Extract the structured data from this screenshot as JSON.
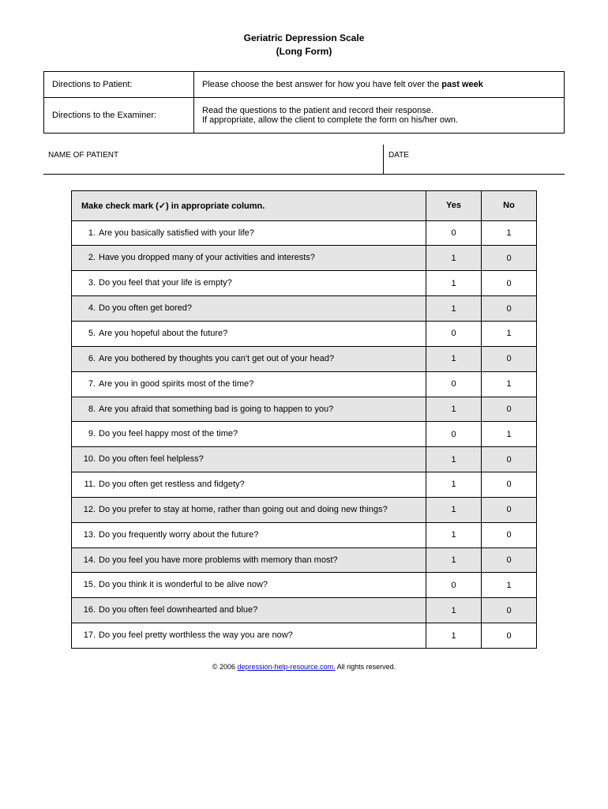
{
  "title": {
    "line1": "Geriatric Depression Scale",
    "line2": "(Long Form)"
  },
  "directions": {
    "patient_label": "Directions to Patient:",
    "patient_text_pre": "Please choose the best answer for how you have felt over the ",
    "patient_text_bold": "past week",
    "examiner_label": "Directions to the Examiner:",
    "examiner_text_line1": "Read the questions to the patient and record their response.",
    "examiner_text_line2": "If appropriate, allow the client to complete the form on his/her own."
  },
  "patient_info": {
    "name_label": "NAME OF PATIENT",
    "date_label": "DATE"
  },
  "questions": {
    "header_instruction": "Make check mark (✓) in appropriate column.",
    "header_yes": "Yes",
    "header_no": "No",
    "header_bg_color": "#e5e5e5",
    "alt_row_bg_color": "#e5e5e5",
    "border_color": "#000000",
    "font_size": 11,
    "yes_col_width": 70,
    "no_col_width": 70,
    "rows": [
      {
        "num": "1.",
        "text": "Are you basically satisfied with your life?",
        "yes": "0",
        "no": "1"
      },
      {
        "num": "2.",
        "text": "Have you dropped many of your activities and interests?",
        "yes": "1",
        "no": "0"
      },
      {
        "num": "3.",
        "text": "Do you feel that your life is empty?",
        "yes": "1",
        "no": "0"
      },
      {
        "num": "4.",
        "text": "Do you often get bored?",
        "yes": "1",
        "no": "0"
      },
      {
        "num": "5.",
        "text": "Are you hopeful about the future?",
        "yes": "0",
        "no": "1"
      },
      {
        "num": "6.",
        "text": "Are you bothered by thoughts you can't get out of your head?",
        "yes": "1",
        "no": "0"
      },
      {
        "num": "7.",
        "text": "Are you in good spirits most of the time?",
        "yes": "0",
        "no": "1"
      },
      {
        "num": "8.",
        "text": "Are you afraid that something bad is going to happen to you?",
        "yes": "1",
        "no": "0"
      },
      {
        "num": "9.",
        "text": "Do you feel happy most of the time?",
        "yes": "0",
        "no": "1"
      },
      {
        "num": "10.",
        "text": "Do you often feel helpless?",
        "yes": "1",
        "no": "0"
      },
      {
        "num": "11.",
        "text": "Do you often get restless and fidgety?",
        "yes": "1",
        "no": "0"
      },
      {
        "num": "12.",
        "text": "Do you prefer to stay at home, rather than going out and doing new things?",
        "yes": "1",
        "no": "0"
      },
      {
        "num": "13.",
        "text": "Do you frequently worry about the future?",
        "yes": "1",
        "no": "0"
      },
      {
        "num": "14.",
        "text": "Do you feel you have more problems with memory than most?",
        "yes": "1",
        "no": "0"
      },
      {
        "num": "15.",
        "text": "Do you think it is wonderful to be alive now?",
        "yes": "0",
        "no": "1"
      },
      {
        "num": "16.",
        "text": "Do you often feel downhearted and blue?",
        "yes": "1",
        "no": "0"
      },
      {
        "num": "17.",
        "text": "Do you feel pretty worthless the way you are now?",
        "yes": "1",
        "no": "0"
      }
    ]
  },
  "footer": {
    "copyright_pre": "© 2006 ",
    "link_text": "depression-help-resource.com.",
    "copyright_post": " All rights reserved."
  }
}
